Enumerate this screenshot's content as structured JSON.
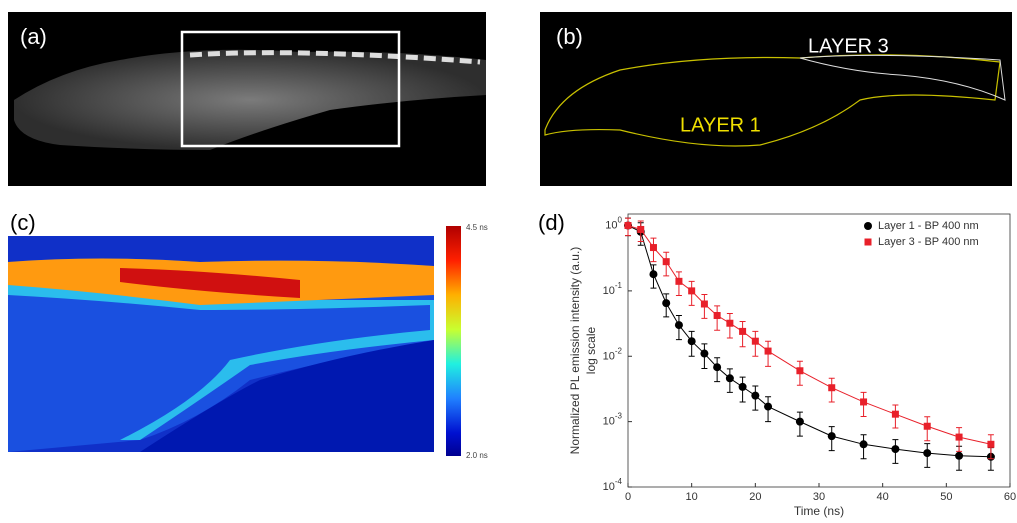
{
  "panels": {
    "a": {
      "label": "(a)"
    },
    "b": {
      "label": "(b)",
      "annotations": [
        "LAYER 3",
        "LAYER 1"
      ]
    },
    "c": {
      "label": "(c)",
      "colorbar_max": "4.5 ns",
      "colorbar_min": "2.0 ns"
    }
  },
  "chart_data": {
    "type": "scatter",
    "panel_label": "(d)",
    "xlabel": "Time (ns)",
    "ylabel": "Normalized PL emission intensity (a.u.)",
    "ylabel2": "log scale",
    "xlim": [
      0,
      60
    ],
    "xticks": [
      0,
      10,
      20,
      30,
      40,
      50,
      60
    ],
    "ylim": [
      0.0001,
      1.5
    ],
    "log_y": true,
    "yticks": [
      {
        "value": 1,
        "label": "10^0"
      },
      {
        "value": 0.1,
        "label": "10^-1"
      },
      {
        "value": 0.01,
        "label": "10^-2"
      },
      {
        "value": 0.001,
        "label": "10^-3"
      },
      {
        "value": 0.0001,
        "label": "10^-4"
      }
    ],
    "legend": "upper right",
    "series": [
      {
        "name": "Layer 1 - BP 400 nm",
        "color": "#000000",
        "marker": "circle",
        "x": [
          0,
          2,
          4,
          6,
          8,
          10,
          12,
          14,
          16,
          18,
          20,
          22,
          27,
          32,
          37,
          42,
          47,
          52,
          57
        ],
        "values": [
          1,
          0.8,
          0.18,
          0.065,
          0.03,
          0.017,
          0.011,
          0.0068,
          0.0046,
          0.0034,
          0.0025,
          0.0017,
          0.001,
          0.0006,
          0.00045,
          0.00038,
          0.00033,
          0.0003,
          0.00029
        ],
        "errors": [
          0.3,
          0.3,
          0.07,
          0.025,
          0.012,
          0.007,
          0.0045,
          0.0027,
          0.0018,
          0.0014,
          0.001,
          0.0007,
          0.0004,
          0.00024,
          0.00018,
          0.00015,
          0.00013,
          0.00012,
          0.00011
        ]
      },
      {
        "name": "Layer 3 - BP 400 nm",
        "color": "#e8202a",
        "marker": "square",
        "x": [
          0,
          2,
          4,
          6,
          8,
          10,
          12,
          14,
          16,
          18,
          20,
          22,
          27,
          32,
          37,
          42,
          47,
          52,
          57
        ],
        "values": [
          1,
          0.87,
          0.46,
          0.28,
          0.14,
          0.1,
          0.063,
          0.042,
          0.032,
          0.024,
          0.017,
          0.012,
          0.006,
          0.0033,
          0.002,
          0.0013,
          0.00085,
          0.00058,
          0.00045
        ],
        "errors": [
          0.3,
          0.3,
          0.18,
          0.11,
          0.055,
          0.04,
          0.025,
          0.017,
          0.013,
          0.01,
          0.007,
          0.005,
          0.0024,
          0.0013,
          0.0008,
          0.0005,
          0.00034,
          0.00023,
          0.00018
        ]
      }
    ]
  }
}
